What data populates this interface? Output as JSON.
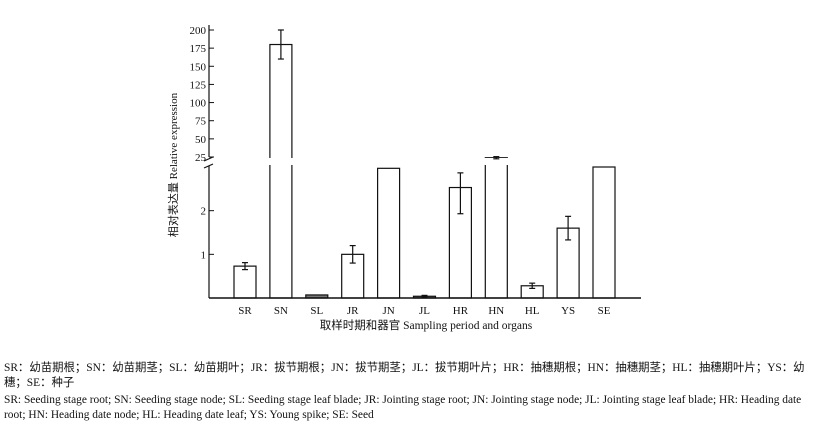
{
  "chart_data": {
    "type": "bar",
    "categories": [
      "SR",
      "SN",
      "SL",
      "JR",
      "JN",
      "JL",
      "HR",
      "HN",
      "HL",
      "YS",
      "SE"
    ],
    "values": [
      0.73,
      180,
      0.07,
      1.0,
      2.97,
      0.04,
      2.53,
      24,
      0.28,
      1.6,
      3.0
    ],
    "errors": [
      0.08,
      20,
      0,
      0.2,
      0,
      0.02,
      0.6,
      1.5,
      0.06,
      0.27,
      0
    ],
    "ylabel": "相对表达量 Relative expression",
    "xlabel": "取样时期和器官 Sampling period and organs",
    "axis_break": true,
    "lower_segment": {
      "ylim": [
        0,
        3
      ],
      "ticks": [
        "1",
        "2"
      ]
    },
    "upper_segment": {
      "ylim": [
        25,
        200
      ],
      "ticks": [
        "25",
        "50",
        "75",
        "100",
        "125",
        "150",
        "175",
        "200"
      ]
    }
  },
  "caption": {
    "chinese": "SR：幼苗期根；SN：幼苗期茎；SL：幼苗期叶；JR：拔节期根；JN：拔节期茎；JL：拔节期叶片；HR：抽穗期根；HN：抽穗期茎；HL：抽穗期叶片；YS：幼穗；SE：种子",
    "english": "SR: Seeding stage root; SN: Seeding stage node; SL: Seeding stage leaf blade; JR: Jointing stage root; JN: Jointing stage node; JL: Jointing stage leaf blade; HR: Heading date root; HN: Heading date node; HL: Heading date leaf; YS: Young spike; SE: Seed"
  }
}
